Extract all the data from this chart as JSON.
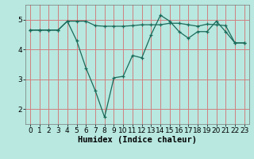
{
  "xlabel": "Humidex (Indice chaleur)",
  "bg_color": "#b8e8e0",
  "grid_color": "#d08080",
  "line_color": "#1a6b5a",
  "x": [
    0,
    1,
    2,
    3,
    4,
    5,
    6,
    7,
    8,
    9,
    10,
    11,
    12,
    13,
    14,
    15,
    16,
    17,
    18,
    19,
    20,
    21,
    22,
    23
  ],
  "line1": [
    4.65,
    4.65,
    4.65,
    4.65,
    4.95,
    4.95,
    4.95,
    4.8,
    4.78,
    4.78,
    4.78,
    4.8,
    4.83,
    4.83,
    4.83,
    4.88,
    4.88,
    4.83,
    4.78,
    4.85,
    4.83,
    4.8,
    4.22,
    4.22
  ],
  "line2": [
    4.65,
    4.65,
    4.65,
    4.65,
    4.95,
    4.3,
    3.38,
    2.62,
    1.73,
    3.05,
    3.1,
    3.8,
    3.72,
    4.5,
    5.15,
    4.95,
    4.6,
    4.38,
    4.6,
    4.6,
    4.95,
    4.6,
    4.22,
    4.22
  ],
  "ylim": [
    1.5,
    5.5
  ],
  "yticks": [
    2,
    3,
    4,
    5
  ],
  "xticks": [
    0,
    1,
    2,
    3,
    4,
    5,
    6,
    7,
    8,
    9,
    10,
    11,
    12,
    13,
    14,
    15,
    16,
    17,
    18,
    19,
    20,
    21,
    22,
    23
  ],
  "tick_fontsize": 6.5,
  "xlabel_fontsize": 7.5,
  "figsize": [
    3.2,
    2.0
  ],
  "dpi": 100
}
